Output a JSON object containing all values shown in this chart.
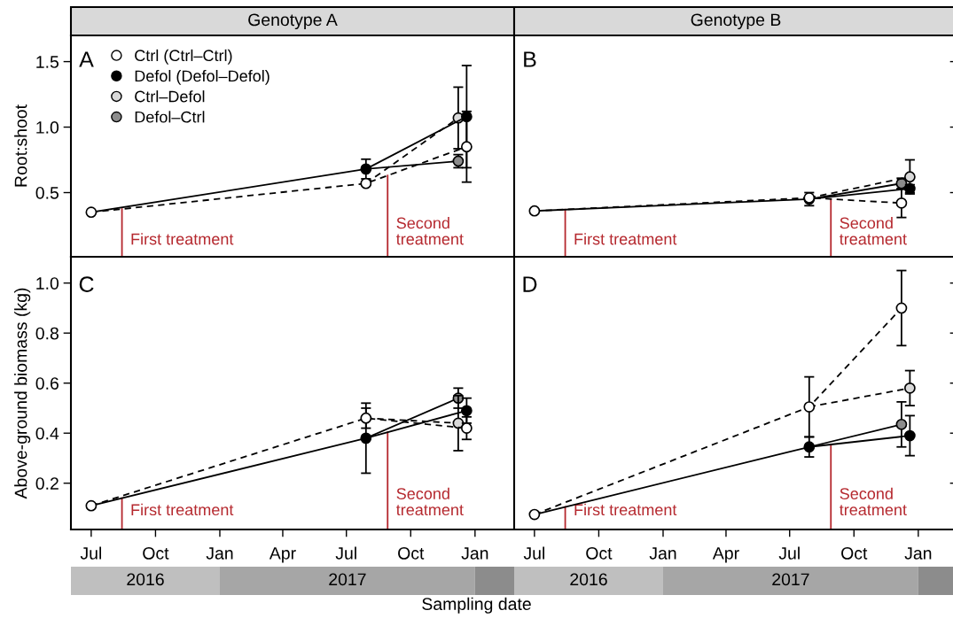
{
  "chart_data": [
    {
      "type": "line",
      "title": "Genotype A",
      "ylabel": "Root:shoot",
      "xlim": [
        "2016-06-02",
        "2018-02-26"
      ],
      "ylim": [
        0.01,
        1.7
      ],
      "yticks": [
        0.5,
        {
          "value": 1.0,
          "label": "1.0"
        },
        1.5
      ],
      "tick_labels": "y",
      "legend": "top left",
      "marker": "circle",
      "annotations": [
        "A"
      ],
      "ref_lines": [
        {
          "axis": "x",
          "value": "2016-08-14",
          "label": "First treatment",
          "color": "#b5282e"
        },
        {
          "axis": "x",
          "value": "2017-08-29",
          "label": "Second\ntreatment",
          "color": "#b5282e"
        }
      ],
      "series": [
        {
          "name": "Ctrl (Ctrl–Ctrl)",
          "color": "#000000",
          "colors": [
            "#ffffff",
            "#ffffff",
            "#ffffff"
          ],
          "line_style": "dashed",
          "x": [
            "2016-07-01",
            "2017-07-29",
            "2017-12-20"
          ],
          "values": [
            0.35,
            0.57,
            0.85
          ],
          "errors": [
            null,
            null,
            0.27
          ]
        },
        {
          "name": "Defol (Defol–Defol)",
          "color": "#000000",
          "colors": [
            null,
            "#000000",
            "#000000"
          ],
          "line_style": "solid",
          "x": [
            "2016-07-01",
            "2017-07-29",
            "2017-12-20"
          ],
          "values": [
            0.35,
            0.68,
            1.08
          ],
          "errors": [
            null,
            0.075,
            0.39
          ]
        },
        {
          "name": "Ctrl–Defol",
          "color": "#000000",
          "colors": [
            null,
            "#d9d9d9"
          ],
          "line_style": "dashed",
          "x": [
            "2017-07-29",
            "2017-12-08"
          ],
          "values": [
            0.57,
            1.07
          ],
          "errors": [
            null,
            0.235
          ]
        },
        {
          "name": "Defol–Ctrl",
          "color": "#000000",
          "colors": [
            null,
            "#8c8c8c"
          ],
          "line_style": "solid",
          "x": [
            "2017-07-29",
            "2017-12-08"
          ],
          "values": [
            0.68,
            0.74
          ],
          "errors": [
            null,
            0.05
          ]
        }
      ]
    },
    {
      "type": "line",
      "title": "Genotype B",
      "xlim": [
        "2016-06-02",
        "2018-02-26"
      ],
      "ylim": [
        0.01,
        1.7
      ],
      "yticks": [
        0.5,
        1.0,
        1.5
      ],
      "tick_labels": false,
      "marker": "circle",
      "annotations": [
        "B"
      ],
      "ref_lines": [
        {
          "axis": "x",
          "value": "2016-08-14",
          "label": "First treatment",
          "color": "#b5282e"
        },
        {
          "axis": "x",
          "value": "2017-08-29",
          "label": "Second\ntreatment",
          "color": "#b5282e"
        }
      ],
      "series": [
        {
          "color": "#000000",
          "colors": [
            "#ffffff",
            "#ffffff",
            "#ffffff"
          ],
          "line_style": "dashed",
          "x": [
            "2016-07-01",
            "2017-07-29",
            "2017-12-08"
          ],
          "values": [
            0.36,
            0.46,
            0.42
          ],
          "errors": [
            null,
            null,
            0.11
          ]
        },
        {
          "color": "#000000",
          "colors": [
            null,
            "#000000",
            "#000000"
          ],
          "line_style": "solid",
          "x": [
            "2016-07-01",
            "2017-07-29",
            "2017-12-20"
          ],
          "values": [
            0.36,
            0.45,
            0.53
          ],
          "errors": [
            null,
            0.05,
            0.03
          ]
        },
        {
          "color": "#000000",
          "colors": [
            null,
            "#d9d9d9"
          ],
          "line_style": "dashed",
          "x": [
            "2017-07-29",
            "2017-12-20"
          ],
          "values": [
            0.46,
            0.62
          ],
          "errors": [
            null,
            0.13
          ]
        },
        {
          "color": "#000000",
          "colors": [
            null,
            "#8c8c8c"
          ],
          "line_style": "solid",
          "x": [
            "2017-07-29",
            "2017-12-08"
          ],
          "values": [
            0.45,
            0.57
          ],
          "errors": [
            null,
            0.04
          ]
        }
      ]
    },
    {
      "type": "line",
      "xlabel": "Sampling date",
      "ylabel": "Above-ground biomass (kg)",
      "xlim": [
        "2016-06-02",
        "2018-02-26"
      ],
      "ylim": [
        0.015,
        1.105
      ],
      "xticks": [
        {
          "value": "2016-07-01",
          "label": "Jul"
        },
        {
          "value": "2016-10-01",
          "label": "Oct"
        },
        {
          "value": "2017-01-01",
          "label": "Jan"
        },
        {
          "value": "2017-04-01",
          "label": "Apr"
        },
        {
          "value": "2017-07-01",
          "label": "Jul"
        },
        {
          "value": "2017-10-01",
          "label": "Oct"
        },
        {
          "value": "2018-01-01",
          "label": "Jan"
        }
      ],
      "yticks": [
        0.2,
        0.4,
        0.6,
        0.8,
        {
          "value": 1.0,
          "label": "1.0"
        }
      ],
      "marker": "circle",
      "annotations": [
        "C",
        "2016",
        "2017"
      ],
      "ref_lines": [
        {
          "axis": "x",
          "value": "2016-08-14",
          "label": "First treatment",
          "color": "#b5282e"
        },
        {
          "axis": "x",
          "value": "2017-08-29",
          "label": "Second\ntreatment",
          "color": "#b5282e"
        }
      ],
      "series": [
        {
          "color": "#000000",
          "colors": [
            "#ffffff",
            "#ffffff",
            "#ffffff"
          ],
          "line_style": "dashed",
          "x": [
            "2016-07-01",
            "2017-07-29",
            "2017-12-20"
          ],
          "values": [
            0.11,
            0.46,
            0.42
          ],
          "errors": [
            null,
            0.04,
            0.045
          ]
        },
        {
          "color": "#000000",
          "colors": [
            null,
            "#000000",
            "#000000"
          ],
          "line_style": "solid",
          "x": [
            "2016-07-01",
            "2017-07-29",
            "2017-12-20"
          ],
          "values": [
            0.11,
            0.38,
            0.49
          ],
          "errors": [
            null,
            0.14,
            0.05
          ]
        },
        {
          "color": "#000000",
          "colors": [
            null,
            "#d9d9d9"
          ],
          "line_style": "dashed",
          "x": [
            "2017-07-29",
            "2017-12-08"
          ],
          "values": [
            0.46,
            0.44
          ],
          "errors": [
            null,
            0.11
          ]
        },
        {
          "color": "#000000",
          "colors": [
            null,
            "#8c8c8c"
          ],
          "line_style": "solid",
          "x": [
            "2017-07-29",
            "2017-12-08"
          ],
          "values": [
            0.38,
            0.54
          ],
          "errors": [
            null,
            0.04
          ]
        }
      ]
    },
    {
      "type": "line",
      "xlim": [
        "2016-06-02",
        "2018-02-26"
      ],
      "ylim": [
        0.015,
        1.105
      ],
      "xticks": [
        {
          "value": "2016-07-01",
          "label": "Jul"
        },
        {
          "value": "2016-10-01",
          "label": "Oct"
        },
        {
          "value": "2017-01-01",
          "label": "Jan"
        },
        {
          "value": "2017-04-01",
          "label": "Apr"
        },
        {
          "value": "2017-07-01",
          "label": "Jul"
        },
        {
          "value": "2017-10-01",
          "label": "Oct"
        },
        {
          "value": "2018-01-01",
          "label": "Jan"
        }
      ],
      "yticks": [
        0.2,
        0.4,
        0.6,
        0.8,
        1.0
      ],
      "tick_labels": "x",
      "marker": "circle",
      "annotations": [
        "D",
        "2016",
        "2017"
      ],
      "ref_lines": [
        {
          "axis": "x",
          "value": "2016-08-14",
          "label": "First treatment",
          "color": "#b5282e"
        },
        {
          "axis": "x",
          "value": "2017-08-29",
          "label": "Second\ntreatment",
          "color": "#b5282e"
        }
      ],
      "series": [
        {
          "color": "#000000",
          "colors": [
            "#ffffff",
            "#ffffff",
            "#ffffff"
          ],
          "line_style": "dashed",
          "x": [
            "2016-07-01",
            "2017-07-29",
            "2017-12-08"
          ],
          "values": [
            0.075,
            0.505,
            0.9
          ],
          "errors": [
            null,
            0.12,
            0.15
          ]
        },
        {
          "color": "#000000",
          "colors": [
            null,
            "#000000",
            "#000000"
          ],
          "line_style": "solid",
          "x": [
            "2016-07-01",
            "2017-07-29",
            "2017-12-20"
          ],
          "values": [
            0.075,
            0.345,
            0.39
          ],
          "errors": [
            null,
            0.04,
            0.08
          ]
        },
        {
          "color": "#000000",
          "colors": [
            null,
            "#d9d9d9"
          ],
          "line_style": "dashed",
          "x": [
            "2017-07-29",
            "2017-12-20"
          ],
          "values": [
            0.505,
            0.58
          ],
          "errors": [
            null,
            0.07
          ]
        },
        {
          "color": "#000000",
          "colors": [
            null,
            "#8c8c8c"
          ],
          "line_style": "solid",
          "x": [
            "2017-07-29",
            "2017-12-08"
          ],
          "values": [
            0.345,
            0.435
          ],
          "errors": [
            null,
            0.09
          ]
        }
      ]
    }
  ]
}
